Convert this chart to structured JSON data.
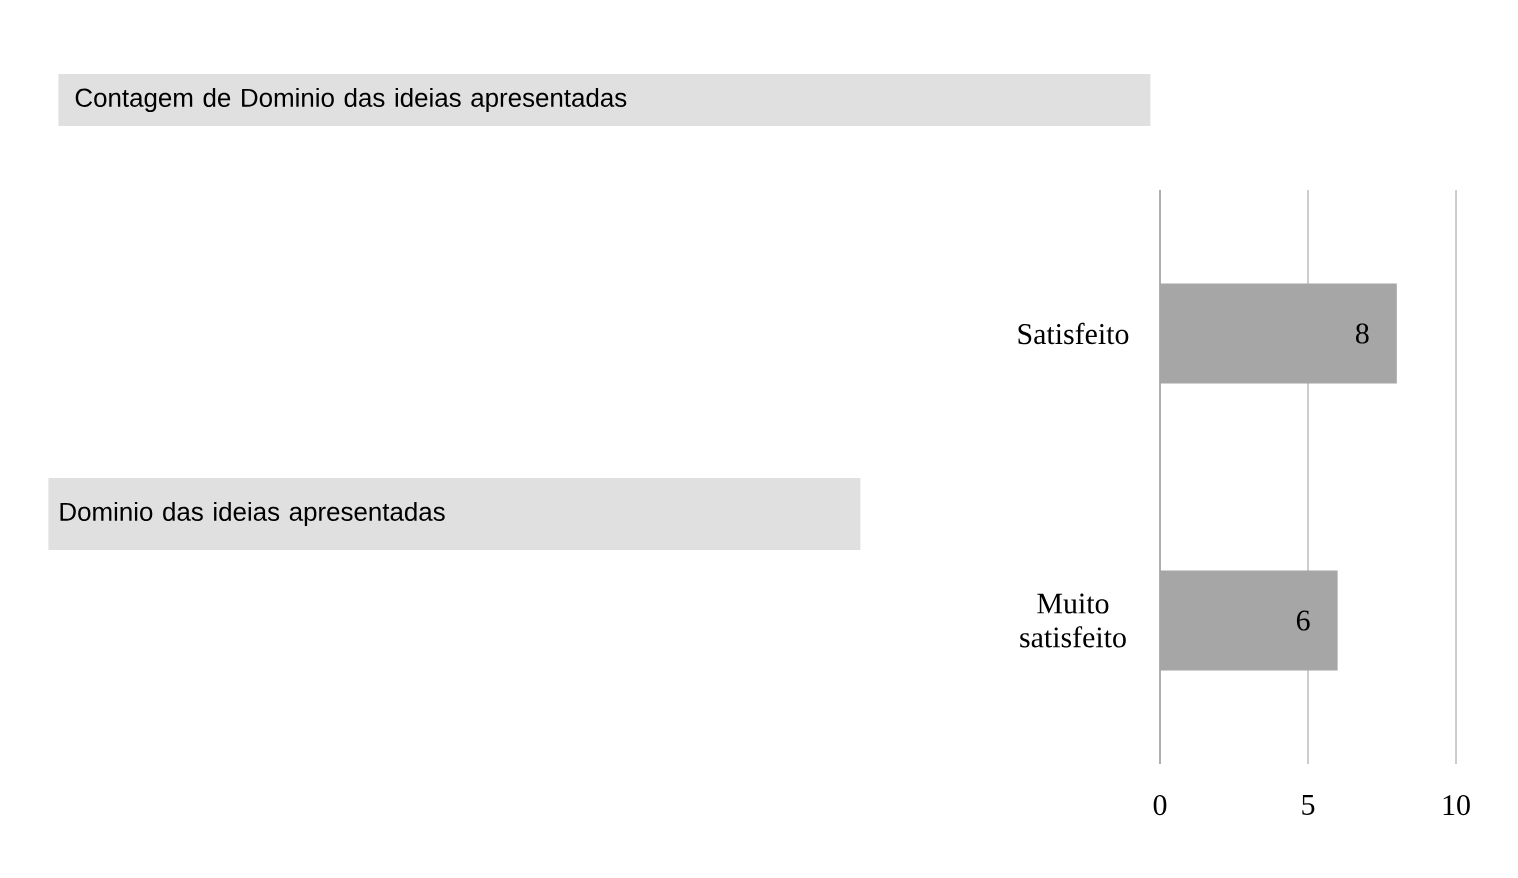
{
  "chart_data": {
    "type": "bar",
    "orientation": "horizontal",
    "title": "Contagem de Dominio das ideias apresentadas",
    "annotations": [
      "Dominio das ideias apresentadas"
    ],
    "categories": [
      "Satisfeito",
      "Muito satisfeito"
    ],
    "values": [
      8,
      6
    ],
    "color": "#a6a6a6",
    "xlim": [
      0,
      10
    ],
    "xticks": [
      0,
      5,
      10
    ],
    "grid": "x",
    "data_labels": true
  }
}
